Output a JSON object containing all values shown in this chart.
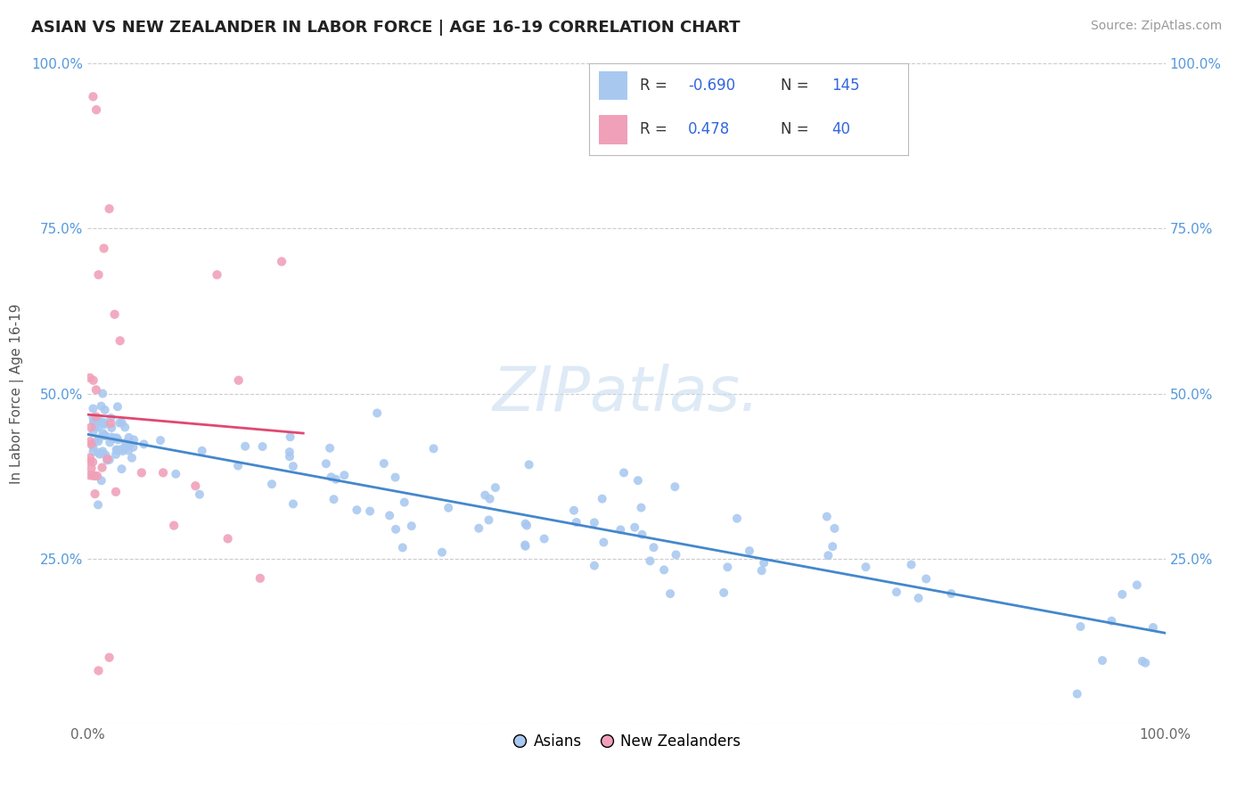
{
  "title": "ASIAN VS NEW ZEALANDER IN LABOR FORCE | AGE 16-19 CORRELATION CHART",
  "source": "Source: ZipAtlas.com",
  "ylabel": "In Labor Force | Age 16-19",
  "legend_blue_label": "Asians",
  "legend_pink_label": "New Zealanders",
  "R_blue": "-0.690",
  "N_blue": "145",
  "R_pink": "0.478",
  "N_pink": "40",
  "blue_color": "#a8c8f0",
  "pink_color": "#f0a0b8",
  "blue_line_color": "#4488cc",
  "pink_line_color": "#e04870",
  "background_color": "#ffffff",
  "grid_color": "#cccccc",
  "xlim": [
    0.0,
    1.0
  ],
  "ylim": [
    0.0,
    1.0
  ],
  "ytick_values": [
    0.0,
    0.25,
    0.5,
    0.75,
    1.0
  ],
  "ytick_labels": [
    "",
    "25.0%",
    "50.0%",
    "75.0%",
    "100.0%"
  ],
  "xtick_values": [
    0.0,
    1.0
  ],
  "xtick_labels": [
    "0.0%",
    "100.0%"
  ]
}
